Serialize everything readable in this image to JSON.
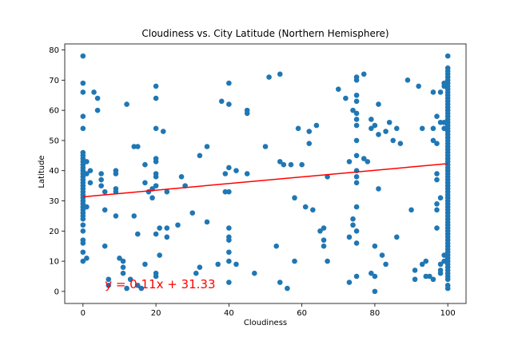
{
  "chart_data": {
    "type": "scatter",
    "title": "Cloudiness vs. City Latitude (Northern Hemisphere)",
    "xlabel": "Cloudiness",
    "ylabel": "Latitude",
    "xlim": [
      -5,
      105
    ],
    "ylim": [
      -4,
      82
    ],
    "xticks": [
      0,
      20,
      40,
      60,
      80,
      100
    ],
    "yticks": [
      0,
      10,
      20,
      30,
      40,
      50,
      60,
      70,
      80
    ],
    "grid": false,
    "point_color": "#1f77b4",
    "line_color": "#ff0000",
    "annotation_color": "#ff0000",
    "regression": {
      "slope": 0.11,
      "intercept": 31.33,
      "x_range": [
        0,
        100
      ]
    },
    "annotation": {
      "text": "y = 0.11x + 31.33",
      "x": 6,
      "y": 1
    },
    "points": [
      [
        0,
        78
      ],
      [
        0,
        69
      ],
      [
        0,
        66
      ],
      [
        0,
        58
      ],
      [
        0,
        54
      ],
      [
        0,
        46
      ],
      [
        0,
        45
      ],
      [
        0,
        44
      ],
      [
        0,
        43
      ],
      [
        0,
        42
      ],
      [
        0,
        41
      ],
      [
        0,
        40
      ],
      [
        0,
        39
      ],
      [
        0,
        38
      ],
      [
        0,
        37
      ],
      [
        0,
        36
      ],
      [
        0,
        35
      ],
      [
        0,
        34
      ],
      [
        0,
        33
      ],
      [
        0,
        32
      ],
      [
        0,
        31
      ],
      [
        0,
        30
      ],
      [
        0,
        29
      ],
      [
        0,
        28
      ],
      [
        0,
        27
      ],
      [
        0,
        26
      ],
      [
        0,
        25
      ],
      [
        0,
        24
      ],
      [
        0,
        22
      ],
      [
        0,
        20
      ],
      [
        0,
        17
      ],
      [
        0,
        16
      ],
      [
        0,
        13
      ],
      [
        0,
        10
      ],
      [
        1,
        43
      ],
      [
        1,
        39
      ],
      [
        1,
        28
      ],
      [
        1,
        11
      ],
      [
        2,
        40
      ],
      [
        2,
        36
      ],
      [
        3,
        66
      ],
      [
        4,
        64
      ],
      [
        4,
        60
      ],
      [
        5,
        39
      ],
      [
        5,
        35
      ],
      [
        5,
        37
      ],
      [
        6,
        33
      ],
      [
        6,
        27
      ],
      [
        6,
        15
      ],
      [
        7,
        4
      ],
      [
        7,
        2
      ],
      [
        9,
        40
      ],
      [
        9,
        39
      ],
      [
        9,
        34
      ],
      [
        9,
        33
      ],
      [
        9,
        25
      ],
      [
        10,
        11
      ],
      [
        11,
        10
      ],
      [
        11,
        8
      ],
      [
        11,
        6
      ],
      [
        12,
        62
      ],
      [
        12,
        1
      ],
      [
        13,
        4
      ],
      [
        14,
        48
      ],
      [
        14,
        25
      ],
      [
        15,
        48
      ],
      [
        15,
        19
      ],
      [
        15,
        2
      ],
      [
        16,
        1
      ],
      [
        17,
        42
      ],
      [
        17,
        36
      ],
      [
        17,
        9
      ],
      [
        18,
        33
      ],
      [
        19,
        34
      ],
      [
        19,
        31
      ],
      [
        20,
        68
      ],
      [
        20,
        64
      ],
      [
        20,
        54
      ],
      [
        20,
        44
      ],
      [
        20,
        43
      ],
      [
        20,
        39
      ],
      [
        20,
        38
      ],
      [
        20,
        35
      ],
      [
        20,
        19
      ],
      [
        20,
        6
      ],
      [
        20,
        5
      ],
      [
        21,
        21
      ],
      [
        21,
        12
      ],
      [
        22,
        53
      ],
      [
        23,
        33
      ],
      [
        23,
        21
      ],
      [
        23,
        18
      ],
      [
        26,
        22
      ],
      [
        27,
        38
      ],
      [
        28,
        35
      ],
      [
        30,
        26
      ],
      [
        31,
        6
      ],
      [
        32,
        8
      ],
      [
        32,
        45
      ],
      [
        34,
        48
      ],
      [
        34,
        23
      ],
      [
        37,
        9
      ],
      [
        38,
        63
      ],
      [
        39,
        39
      ],
      [
        39,
        33
      ],
      [
        40,
        69
      ],
      [
        40,
        62
      ],
      [
        40,
        41
      ],
      [
        40,
        33
      ],
      [
        40,
        21
      ],
      [
        40,
        18
      ],
      [
        40,
        17
      ],
      [
        40,
        13
      ],
      [
        40,
        10
      ],
      [
        40,
        3
      ],
      [
        42,
        40
      ],
      [
        42,
        9
      ],
      [
        45,
        60
      ],
      [
        45,
        59
      ],
      [
        45,
        39
      ],
      [
        47,
        6
      ],
      [
        50,
        48
      ],
      [
        51,
        71
      ],
      [
        53,
        15
      ],
      [
        54,
        72
      ],
      [
        54,
        43
      ],
      [
        54,
        3
      ],
      [
        55,
        42
      ],
      [
        56,
        1
      ],
      [
        57,
        42
      ],
      [
        58,
        31
      ],
      [
        58,
        10
      ],
      [
        59,
        54
      ],
      [
        60,
        42
      ],
      [
        61,
        28
      ],
      [
        62,
        53
      ],
      [
        62,
        49
      ],
      [
        63,
        27
      ],
      [
        64,
        55
      ],
      [
        65,
        20
      ],
      [
        66,
        21
      ],
      [
        66,
        17
      ],
      [
        66,
        15
      ],
      [
        67,
        10
      ],
      [
        67,
        38
      ],
      [
        70,
        67
      ],
      [
        72,
        64
      ],
      [
        73,
        43
      ],
      [
        73,
        18
      ],
      [
        73,
        3
      ],
      [
        74,
        60
      ],
      [
        74,
        24
      ],
      [
        74,
        22
      ],
      [
        75,
        71
      ],
      [
        75,
        70
      ],
      [
        75,
        65
      ],
      [
        75,
        63
      ],
      [
        75,
        59
      ],
      [
        75,
        57
      ],
      [
        75,
        55
      ],
      [
        75,
        50
      ],
      [
        75,
        45
      ],
      [
        75,
        40
      ],
      [
        75,
        38
      ],
      [
        75,
        36
      ],
      [
        75,
        28
      ],
      [
        75,
        20
      ],
      [
        75,
        16
      ],
      [
        75,
        5
      ],
      [
        77,
        72
      ],
      [
        77,
        44
      ],
      [
        78,
        43
      ],
      [
        79,
        57
      ],
      [
        79,
        54
      ],
      [
        79,
        6
      ],
      [
        80,
        55
      ],
      [
        80,
        15
      ],
      [
        80,
        5
      ],
      [
        80,
        0
      ],
      [
        81,
        62
      ],
      [
        81,
        52
      ],
      [
        81,
        34
      ],
      [
        82,
        12
      ],
      [
        83,
        53
      ],
      [
        83,
        9
      ],
      [
        84,
        56
      ],
      [
        85,
        50
      ],
      [
        86,
        54
      ],
      [
        86,
        18
      ],
      [
        87,
        49
      ],
      [
        89,
        70
      ],
      [
        90,
        27
      ],
      [
        91,
        7
      ],
      [
        91,
        4
      ],
      [
        92,
        68
      ],
      [
        93,
        54
      ],
      [
        93,
        9
      ],
      [
        94,
        10
      ],
      [
        94,
        5
      ],
      [
        95,
        5
      ],
      [
        96,
        54
      ],
      [
        96,
        66
      ],
      [
        96,
        50
      ],
      [
        96,
        4
      ],
      [
        97,
        58
      ],
      [
        97,
        49
      ],
      [
        97,
        39
      ],
      [
        97,
        37
      ],
      [
        97,
        29
      ],
      [
        97,
        27
      ],
      [
        97,
        21
      ],
      [
        98,
        66
      ],
      [
        98,
        56
      ],
      [
        98,
        31
      ],
      [
        98,
        9
      ],
      [
        98,
        7
      ],
      [
        98,
        6
      ],
      [
        99,
        69
      ],
      [
        99,
        68
      ],
      [
        99,
        56
      ],
      [
        99,
        54
      ],
      [
        99,
        12
      ],
      [
        99,
        10
      ],
      [
        100,
        78
      ],
      [
        100,
        74
      ],
      [
        100,
        73
      ],
      [
        100,
        72
      ],
      [
        100,
        71
      ],
      [
        100,
        70
      ],
      [
        100,
        69
      ],
      [
        100,
        68
      ],
      [
        100,
        67
      ],
      [
        100,
        66
      ],
      [
        100,
        65
      ],
      [
        100,
        64
      ],
      [
        100,
        63
      ],
      [
        100,
        62
      ],
      [
        100,
        61
      ],
      [
        100,
        60
      ],
      [
        100,
        59
      ],
      [
        100,
        58
      ],
      [
        100,
        57
      ],
      [
        100,
        56
      ],
      [
        100,
        55
      ],
      [
        100,
        54
      ],
      [
        100,
        53
      ],
      [
        100,
        52
      ],
      [
        100,
        51
      ],
      [
        100,
        50
      ],
      [
        100,
        49
      ],
      [
        100,
        48
      ],
      [
        100,
        47
      ],
      [
        100,
        46
      ],
      [
        100,
        45
      ],
      [
        100,
        44
      ],
      [
        100,
        43
      ],
      [
        100,
        42
      ],
      [
        100,
        41
      ],
      [
        100,
        40
      ],
      [
        100,
        39
      ],
      [
        100,
        38
      ],
      [
        100,
        37
      ],
      [
        100,
        36
      ],
      [
        100,
        35
      ],
      [
        100,
        34
      ],
      [
        100,
        33
      ],
      [
        100,
        32
      ],
      [
        100,
        31
      ],
      [
        100,
        30
      ],
      [
        100,
        29
      ],
      [
        100,
        28
      ],
      [
        100,
        27
      ],
      [
        100,
        26
      ],
      [
        100,
        25
      ],
      [
        100,
        24
      ],
      [
        100,
        23
      ],
      [
        100,
        22
      ],
      [
        100,
        21
      ],
      [
        100,
        20
      ],
      [
        100,
        19
      ],
      [
        100,
        18
      ],
      [
        100,
        17
      ],
      [
        100,
        16
      ],
      [
        100,
        15
      ],
      [
        100,
        14
      ],
      [
        100,
        13
      ],
      [
        100,
        12
      ],
      [
        100,
        11
      ],
      [
        100,
        10
      ],
      [
        100,
        9
      ],
      [
        100,
        8
      ],
      [
        100,
        7
      ],
      [
        100,
        6
      ],
      [
        100,
        5
      ],
      [
        100,
        4
      ],
      [
        100,
        2
      ],
      [
        100,
        1
      ]
    ]
  }
}
